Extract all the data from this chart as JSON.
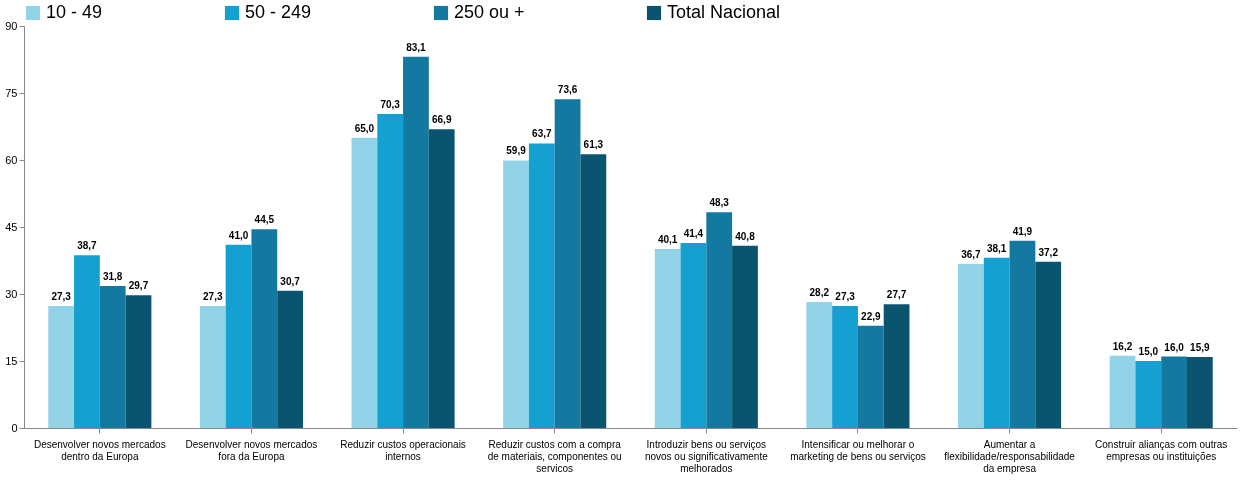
{
  "chart_data": {
    "type": "bar",
    "categories": [
      "Desenvolver novos mercados dentro da Europa",
      "Desenvolver novos mercados fora da Europa",
      "Reduzir custos operacionais internos",
      "Reduzir custos com a compra de materiais, componentes ou servicos",
      "Introduzir bens ou serviços novos ou significativamente melhorados",
      "Intensificar ou melhorar o marketing de bens ou serviços",
      "Aumentar a flexibilidade/responsabilidade da empresa",
      "Construir alianças com outras empresas ou instituições"
    ],
    "series": [
      {
        "name": "10 - 49",
        "color": "#93d3e8",
        "values": [
          27.3,
          27.3,
          65.0,
          59.9,
          40.1,
          28.2,
          36.7,
          16.2
        ],
        "value_labels": [
          "27,3",
          "27,3",
          "65,0",
          "59,9",
          "40,1",
          "28,2",
          "36,7",
          "16,2"
        ]
      },
      {
        "name": "50 - 249",
        "color": "#14a0d0",
        "values": [
          38.7,
          41.0,
          70.3,
          63.7,
          41.4,
          27.3,
          38.1,
          15.0
        ],
        "value_labels": [
          "38,7",
          "41,0",
          "70,3",
          "63,7",
          "41,4",
          "27,3",
          "38,1",
          "15,0"
        ]
      },
      {
        "name": "250 ou +",
        "color": "#1479a0",
        "values": [
          31.8,
          44.5,
          83.1,
          73.6,
          48.3,
          22.9,
          41.9,
          16.0
        ],
        "value_labels": [
          "31,8",
          "44,5",
          "83,1",
          "73,6",
          "48,3",
          "22,9",
          "41,9",
          "16,0"
        ]
      },
      {
        "name": "Total Nacional",
        "color": "#0a5470",
        "values": [
          29.7,
          30.7,
          66.9,
          61.3,
          40.8,
          27.7,
          37.2,
          15.9
        ],
        "value_labels": [
          "29,7",
          "30,7",
          "66,9",
          "61,3",
          "40,8",
          "27,7",
          "37,2",
          "15,9"
        ]
      }
    ],
    "ylim": [
      0,
      90
    ],
    "yticks": [
      0,
      15,
      30,
      45,
      60,
      75,
      90
    ],
    "grid": false,
    "legend": "top"
  }
}
